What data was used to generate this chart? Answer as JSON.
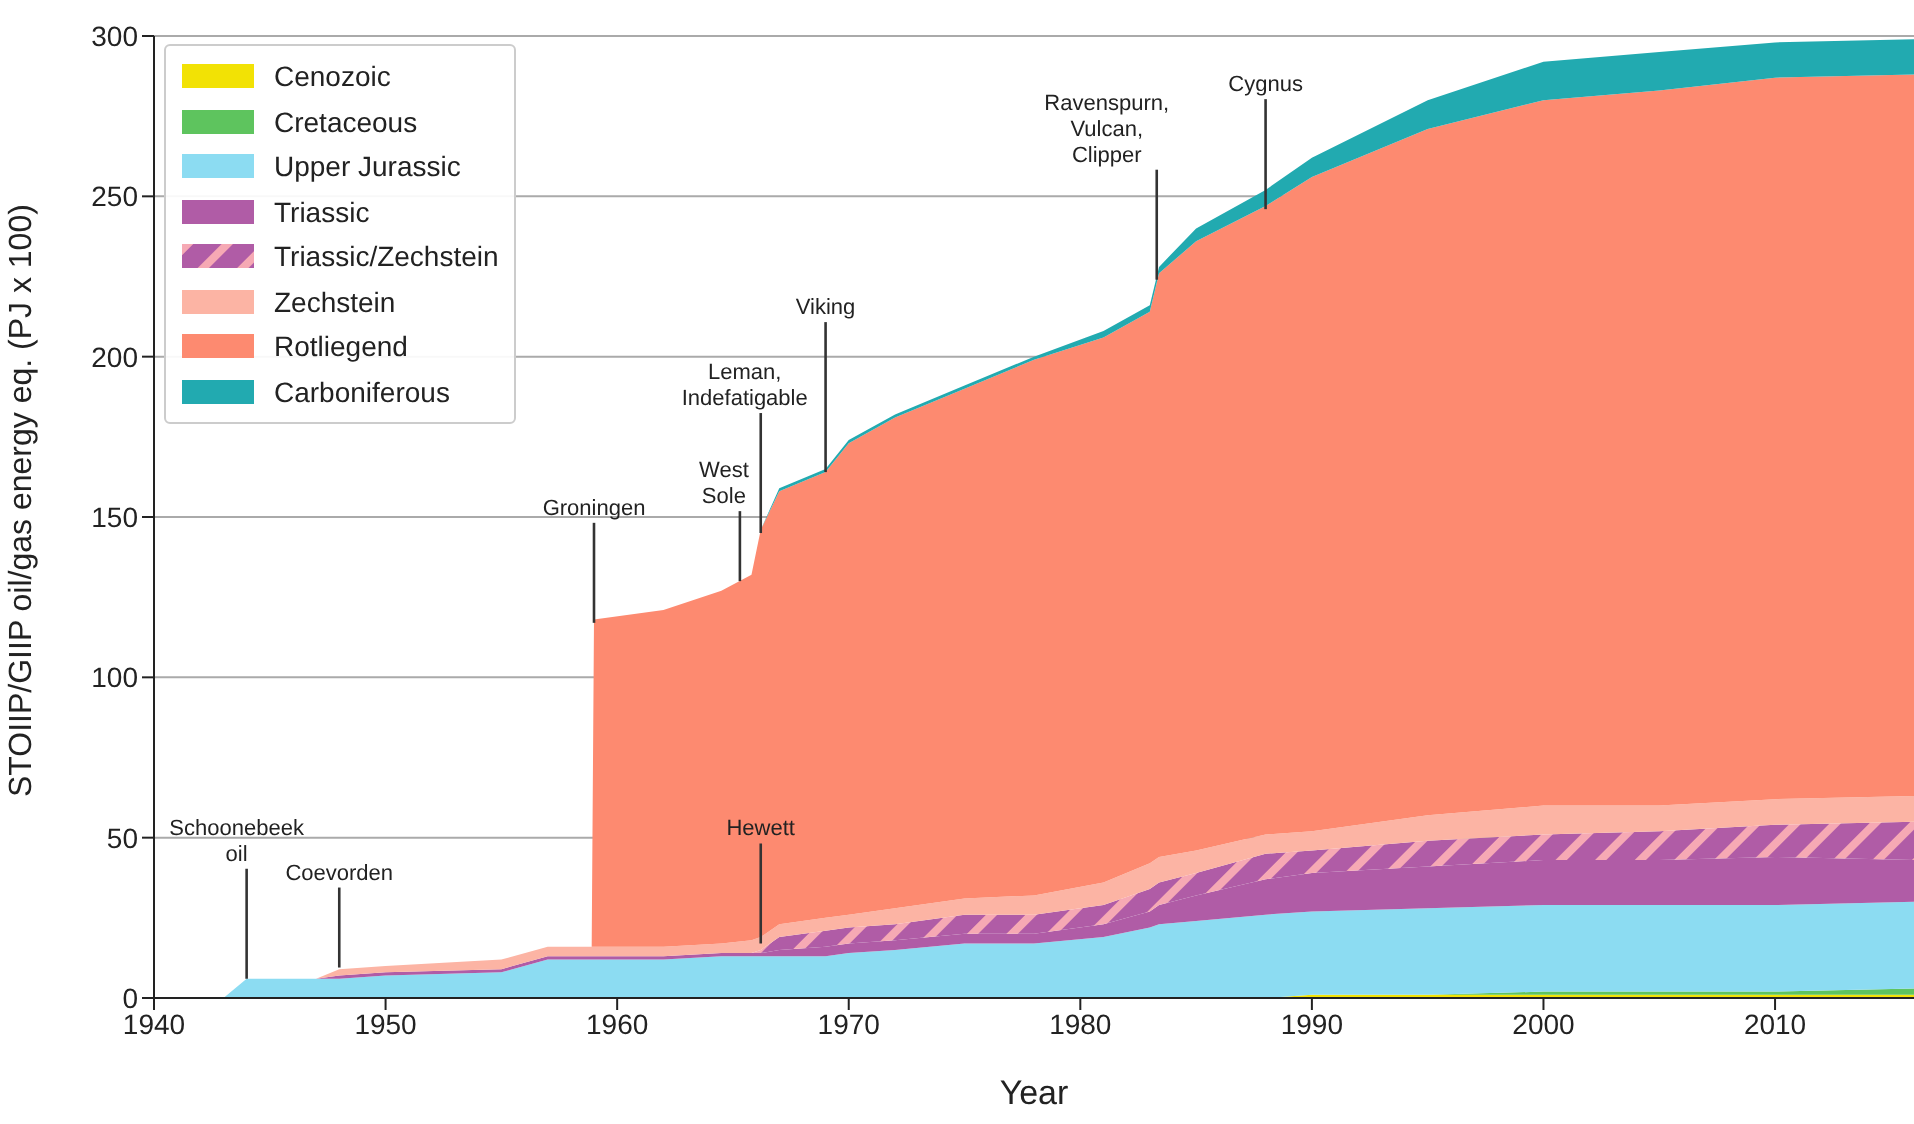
{
  "chart_data": {
    "type": "area",
    "stacked": true,
    "xlabel": "Year",
    "ylabel": "STOIIP/GIIP oil/gas energy eq. (PJ x 100)",
    "x": [
      1943,
      1944,
      1947,
      1948,
      1950,
      1955,
      1957,
      1958.9,
      1959,
      1962,
      1964.5,
      1965.8,
      1966.2,
      1967,
      1969,
      1970,
      1972,
      1975,
      1978,
      1981,
      1983,
      1983.4,
      1985,
      1988,
      1990,
      1995,
      2000,
      2005,
      2010,
      2016
    ],
    "series": [
      {
        "name": "Cenozoic",
        "color": "#f2e205",
        "values": [
          0,
          0,
          0,
          0,
          0,
          0,
          0,
          0,
          0,
          0,
          0,
          0,
          0,
          0,
          0,
          0,
          0,
          0,
          0,
          0,
          0,
          0,
          0,
          0,
          1,
          1,
          1,
          1,
          1,
          1
        ]
      },
      {
        "name": "Cretaceous",
        "color": "#5ec45e",
        "values": [
          0,
          0,
          0,
          0,
          0,
          0,
          0,
          0,
          0,
          0,
          0,
          0,
          0,
          0,
          0,
          0,
          0,
          0,
          0,
          0,
          0,
          0,
          0,
          0,
          0,
          0,
          1,
          1,
          1,
          2
        ]
      },
      {
        "name": "Upper Jurassic",
        "color": "#8cdcf2",
        "values": [
          0,
          6,
          6,
          6,
          7,
          8,
          12,
          12,
          12,
          12,
          13,
          13,
          13,
          13,
          13,
          14,
          15,
          17,
          17,
          19,
          22,
          23,
          24,
          26,
          26,
          27,
          27,
          27,
          27,
          27
        ]
      },
      {
        "name": "Triassic",
        "color": "#b05ca6",
        "values": [
          0,
          0,
          0,
          1,
          1,
          1,
          1,
          1,
          1,
          1,
          1,
          1,
          1,
          2,
          3,
          3,
          3,
          3,
          3,
          4,
          5,
          6,
          8,
          11,
          12,
          13,
          14,
          14,
          15,
          13
        ]
      },
      {
        "name": "Triassic/Zechstein",
        "color": "#b05ca6",
        "values": [
          0,
          0,
          0,
          0,
          0,
          0,
          0,
          0,
          0,
          0,
          0,
          0,
          1,
          4,
          5,
          5,
          5,
          6,
          6,
          6,
          7,
          7,
          7,
          8,
          7,
          8,
          8,
          9,
          10,
          12
        ]
      },
      {
        "name": "Zechstein",
        "color": "#fcb4a4",
        "values": [
          0,
          0,
          0,
          2,
          2,
          3,
          3,
          3,
          3,
          3,
          3,
          4,
          4,
          4,
          4,
          4,
          5,
          5,
          6,
          7,
          8,
          8,
          7,
          6,
          6,
          8,
          9,
          8,
          8,
          8
        ]
      },
      {
        "name": "Rotliegend",
        "color": "#fd8a70",
        "values": [
          0,
          0,
          0,
          0,
          0,
          0,
          0,
          0,
          102,
          105,
          110,
          114,
          127,
          135,
          139,
          147,
          153,
          159,
          167,
          170,
          172,
          182,
          190,
          196,
          204,
          214,
          220,
          223,
          225,
          225
        ]
      },
      {
        "name": "Carboniferous",
        "color": "#22aab0",
        "values": [
          0,
          0,
          0,
          0,
          0,
          0,
          0,
          0,
          0,
          0,
          0,
          0,
          0,
          1,
          1,
          1,
          1,
          1,
          1,
          2,
          2,
          2,
          4,
          5,
          6,
          9,
          12,
          12,
          11,
          11
        ]
      }
    ],
    "xlim": [
      1940,
      2016
    ],
    "xticks": [
      1940,
      1950,
      1960,
      1970,
      1980,
      1990,
      2000,
      2010
    ],
    "ylim": [
      0,
      300
    ],
    "yticks": [
      0,
      50,
      100,
      150,
      200,
      250,
      300
    ],
    "grid": "y",
    "legend": "top left",
    "annotations": [
      {
        "text": "Schoonebeek\noil",
        "x": 1944,
        "y": 6
      },
      {
        "text": "Coevorden",
        "x": 1948,
        "y": 9.5
      },
      {
        "text": "Groningen",
        "x": 1959,
        "y": 117
      },
      {
        "text": "West\nSole",
        "x": 1965.3,
        "y": 130
      },
      {
        "text": "Leman,\nIndefatigable",
        "x": 1966.2,
        "y": 145
      },
      {
        "text": "Viking",
        "x": 1969,
        "y": 164
      },
      {
        "text": "Hewett",
        "x": 1966.2,
        "y": 17
      },
      {
        "text": "Ravenspurn,\nVulcan,\nClipper",
        "x": 1983.3,
        "y": 224
      },
      {
        "text": "Cygnus",
        "x": 1988,
        "y": 246
      }
    ]
  }
}
